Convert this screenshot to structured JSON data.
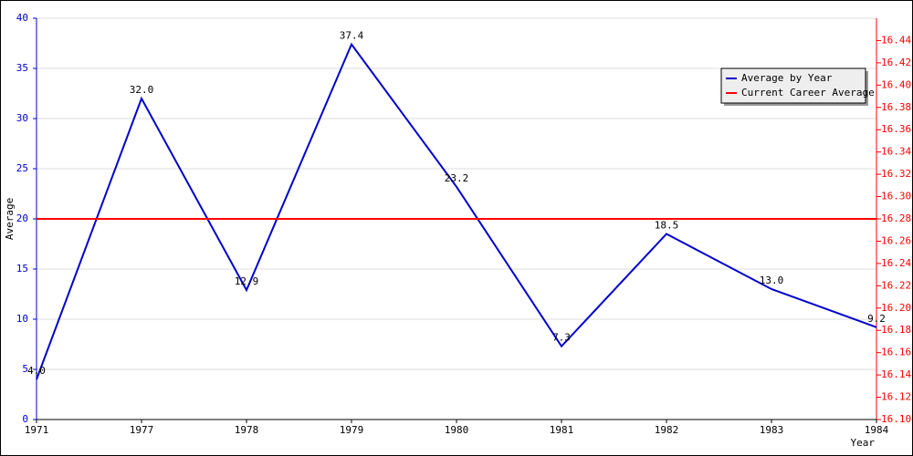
{
  "chart_data": {
    "type": "line",
    "x_label": "Year",
    "y_label": "Average",
    "categories": [
      "1971",
      "1977",
      "1978",
      "1979",
      "1980",
      "1981",
      "1982",
      "1983",
      "1984"
    ],
    "series": [
      {
        "name": "Average by Year",
        "color": "#0000cc",
        "values": [
          4.0,
          32.0,
          12.9,
          37.4,
          23.2,
          7.3,
          18.5,
          13.0,
          9.2
        ],
        "value_labels": [
          "4.0",
          "32.0",
          "12.9",
          "37.4",
          "23.2",
          "7.3",
          "18.5",
          "13.0",
          "9.2"
        ]
      },
      {
        "name": "Current Career Average",
        "color": "#ff0000",
        "axis": "y2",
        "values": [
          16.28,
          16.28,
          16.28,
          16.28,
          16.28,
          16.28,
          16.28,
          16.28,
          16.28
        ]
      }
    ],
    "ylim": [
      0,
      40
    ],
    "yticks": [
      0,
      5,
      10,
      15,
      20,
      25,
      30,
      35,
      40
    ],
    "y2lim": [
      16.1,
      16.46
    ],
    "y2ticks": [
      {
        "value": 16.1,
        "label": "16.10"
      },
      {
        "value": 16.12,
        "label": "16.12"
      },
      {
        "value": 16.14,
        "label": "16.14"
      },
      {
        "value": 16.16,
        "label": "16.16"
      },
      {
        "value": 16.18,
        "label": "16.18"
      },
      {
        "value": 16.2,
        "label": "16.20"
      },
      {
        "value": 16.22,
        "label": "16.22"
      },
      {
        "value": 16.24,
        "label": "16.24"
      },
      {
        "value": 16.26,
        "label": "16.26"
      },
      {
        "value": 16.28,
        "label": "16.28"
      },
      {
        "value": 16.3,
        "label": "16.30"
      },
      {
        "value": 16.32,
        "label": "16.32"
      },
      {
        "value": 16.34,
        "label": "16.34"
      },
      {
        "value": 16.36,
        "label": "16.36"
      },
      {
        "value": 16.38,
        "label": "16.38"
      },
      {
        "value": 16.4,
        "label": "16.40"
      },
      {
        "value": 16.42,
        "label": "16.42"
      },
      {
        "value": 16.44,
        "label": "16.44"
      }
    ],
    "grid": true,
    "legend": "top-right"
  }
}
